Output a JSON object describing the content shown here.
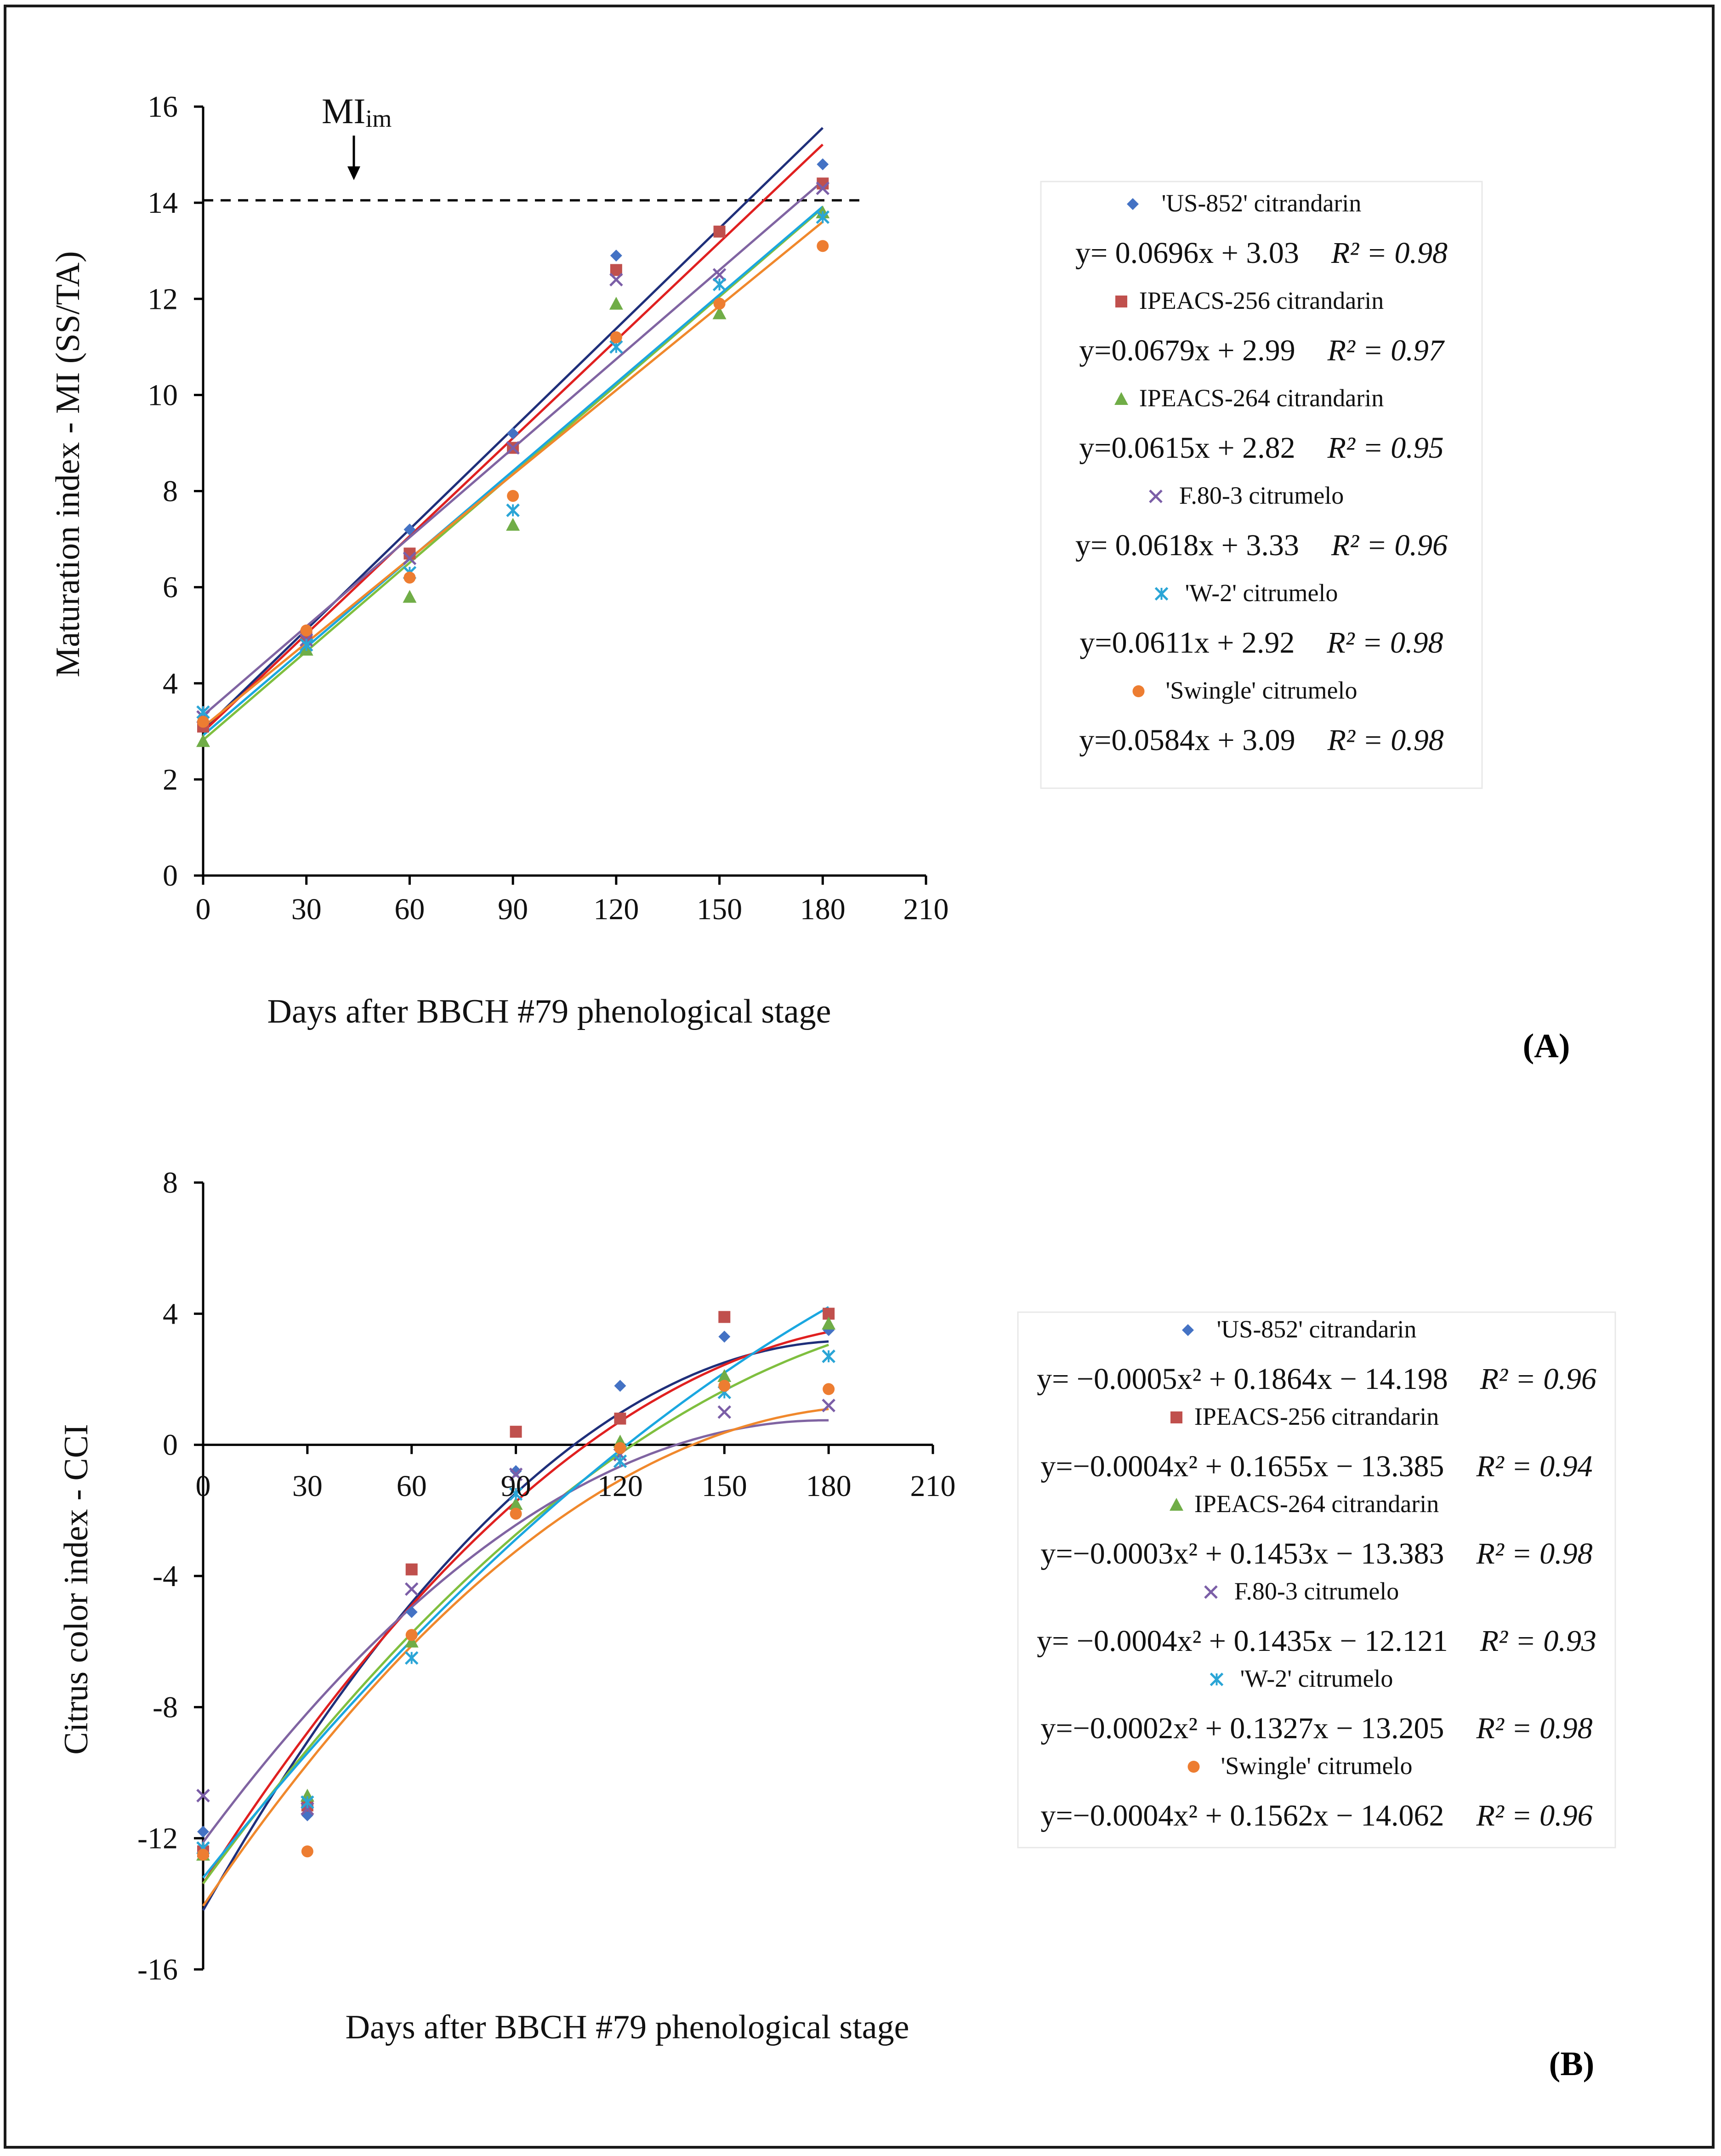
{
  "chart_data": [
    {
      "type": "scatter",
      "panel_label": "(A)",
      "title": "",
      "xlabel": "Days after BBCH #79 phenological stage",
      "ylabel": "Maturation index - MI (SS/TA)",
      "xlim": [
        0,
        210
      ],
      "ylim": [
        0,
        16
      ],
      "xticks": [
        0,
        30,
        60,
        90,
        120,
        150,
        180,
        210
      ],
      "yticks": [
        0,
        2,
        4,
        6,
        8,
        10,
        12,
        14,
        16
      ],
      "x": [
        0,
        30,
        60,
        90,
        120,
        150,
        180
      ],
      "reference_line": {
        "y": 14.05,
        "label_main": "MI",
        "label_sub": "im"
      },
      "series": [
        {
          "name": "'US-852' citrandarin",
          "marker": "diamond",
          "color": "#4472c4",
          "line_color": "#1f2f7a",
          "values": [
            3.3,
            4.9,
            7.2,
            9.2,
            12.9,
            13.4,
            14.8
          ],
          "fit": {
            "type": "linear",
            "a": 0.0696,
            "b": 3.03
          },
          "equation": "y= 0.0696x + 3.03",
          "r2": "R² = 0.98"
        },
        {
          "name": "IPEACS-256 citrandarin",
          "marker": "square",
          "color": "#c0504d",
          "line_color": "#e02020",
          "values": [
            3.1,
            5.0,
            6.7,
            8.9,
            12.6,
            13.4,
            14.4
          ],
          "fit": {
            "type": "linear",
            "a": 0.0679,
            "b": 2.99
          },
          "equation": "y=0.0679x + 2.99",
          "r2": "R² = 0.97"
        },
        {
          "name": "IPEACS-264 citrandarin",
          "marker": "triangle",
          "color": "#70ad47",
          "line_color": "#7fbf3f",
          "values": [
            2.8,
            4.7,
            5.8,
            7.3,
            11.9,
            11.7,
            13.8
          ],
          "fit": {
            "type": "linear",
            "a": 0.0615,
            "b": 2.82
          },
          "equation": "y=0.0615x + 2.82",
          "r2": "R² = 0.95"
        },
        {
          "name": "F.80-3 citrumelo",
          "marker": "x",
          "color": "#7b5ea7",
          "line_color": "#8064a2",
          "values": [
            3.3,
            4.9,
            6.6,
            8.9,
            12.4,
            12.5,
            14.3
          ],
          "fit": {
            "type": "linear",
            "a": 0.0618,
            "b": 3.33
          },
          "equation": "y= 0.0618x + 3.33",
          "r2": "R² = 0.96"
        },
        {
          "name": "'W-2' citrumelo",
          "marker": "star",
          "color": "#2aa5d6",
          "line_color": "#1aa7e0",
          "values": [
            3.4,
            4.8,
            6.3,
            7.6,
            11.0,
            12.3,
            13.7
          ],
          "fit": {
            "type": "linear",
            "a": 0.0611,
            "b": 2.92
          },
          "equation": "y=0.0611x + 2.92",
          "r2": "R² = 0.98"
        },
        {
          "name": "'Swingle' citrumelo",
          "marker": "circle",
          "color": "#ed7d31",
          "line_color": "#f0882c",
          "values": [
            3.2,
            5.1,
            6.2,
            7.9,
            11.2,
            11.9,
            13.1
          ],
          "fit": {
            "type": "linear",
            "a": 0.0584,
            "b": 3.09
          },
          "equation": "y=0.0584x + 3.09",
          "r2": "R² = 0.98"
        }
      ]
    },
    {
      "type": "scatter",
      "panel_label": "(B)",
      "title": "",
      "xlabel": "Days after BBCH #79 phenological stage",
      "ylabel": "Citrus color index - CCI",
      "xlim": [
        0,
        210
      ],
      "ylim": [
        -16,
        8
      ],
      "xticks": [
        0,
        30,
        60,
        90,
        120,
        150,
        180,
        210
      ],
      "yticks": [
        -16,
        -12,
        -8,
        -4,
        0,
        4,
        8
      ],
      "x": [
        0,
        30,
        60,
        90,
        120,
        150,
        180
      ],
      "series": [
        {
          "name": "'US-852' citrandarin",
          "marker": "diamond",
          "color": "#4472c4",
          "line_color": "#1f2f7a",
          "values": [
            -11.8,
            -11.3,
            -5.1,
            -0.8,
            1.8,
            3.3,
            3.5
          ],
          "fit": {
            "type": "quadratic",
            "a": -0.0005,
            "b": 0.1864,
            "c": -14.198
          },
          "equation": "y= −0.0005x² + 0.1864x − 14.198",
          "r2": "R² = 0.96"
        },
        {
          "name": "IPEACS-256 citrandarin",
          "marker": "square",
          "color": "#c0504d",
          "line_color": "#e02020",
          "values": [
            -12.4,
            -11.0,
            -3.8,
            0.4,
            0.8,
            3.9,
            4.0
          ],
          "fit": {
            "type": "quadratic",
            "a": -0.0004,
            "b": 0.1655,
            "c": -13.385
          },
          "equation": "y=−0.0004x² + 0.1655x − 13.385",
          "r2": "R² = 0.94"
        },
        {
          "name": "IPEACS-264 citrandarin",
          "marker": "triangle",
          "color": "#70ad47",
          "line_color": "#7fbf3f",
          "values": [
            -12.5,
            -10.7,
            -6.0,
            -1.8,
            0.1,
            2.1,
            3.7
          ],
          "fit": {
            "type": "quadratic",
            "a": -0.0003,
            "b": 0.1453,
            "c": -13.383
          },
          "equation": "y=−0.0003x² + 0.1453x − 13.383",
          "r2": "R² = 0.98"
        },
        {
          "name": "F.80-3 citrumelo",
          "marker": "x",
          "color": "#7b5ea7",
          "line_color": "#8064a2",
          "values": [
            -10.7,
            -11.1,
            -4.4,
            -0.9,
            -0.3,
            1.0,
            1.2
          ],
          "fit": {
            "type": "quadratic",
            "a": -0.0004,
            "b": 0.1435,
            "c": -12.121
          },
          "equation": "y= −0.0004x² + 0.1435x − 12.121",
          "r2": "R² = 0.93"
        },
        {
          "name": "'W-2' citrumelo",
          "marker": "star",
          "color": "#2aa5d6",
          "line_color": "#1aa7e0",
          "values": [
            -12.3,
            -10.9,
            -6.5,
            -1.5,
            -0.5,
            1.6,
            2.7
          ],
          "fit": {
            "type": "quadratic",
            "a": -0.0002,
            "b": 0.1327,
            "c": -13.205
          },
          "equation": "y=−0.0002x² + 0.1327x − 13.205",
          "r2": "R² = 0.98"
        },
        {
          "name": "'Swingle' citrumelo",
          "marker": "circle",
          "color": "#ed7d31",
          "line_color": "#f0882c",
          "values": [
            -12.5,
            -12.4,
            -5.8,
            -2.1,
            -0.1,
            1.8,
            1.7
          ],
          "fit": {
            "type": "quadratic",
            "a": -0.0004,
            "b": 0.1562,
            "c": -14.062
          },
          "equation": "y=−0.0004x² + 0.1562x − 14.062",
          "r2": "R² = 0.96"
        }
      ]
    }
  ]
}
